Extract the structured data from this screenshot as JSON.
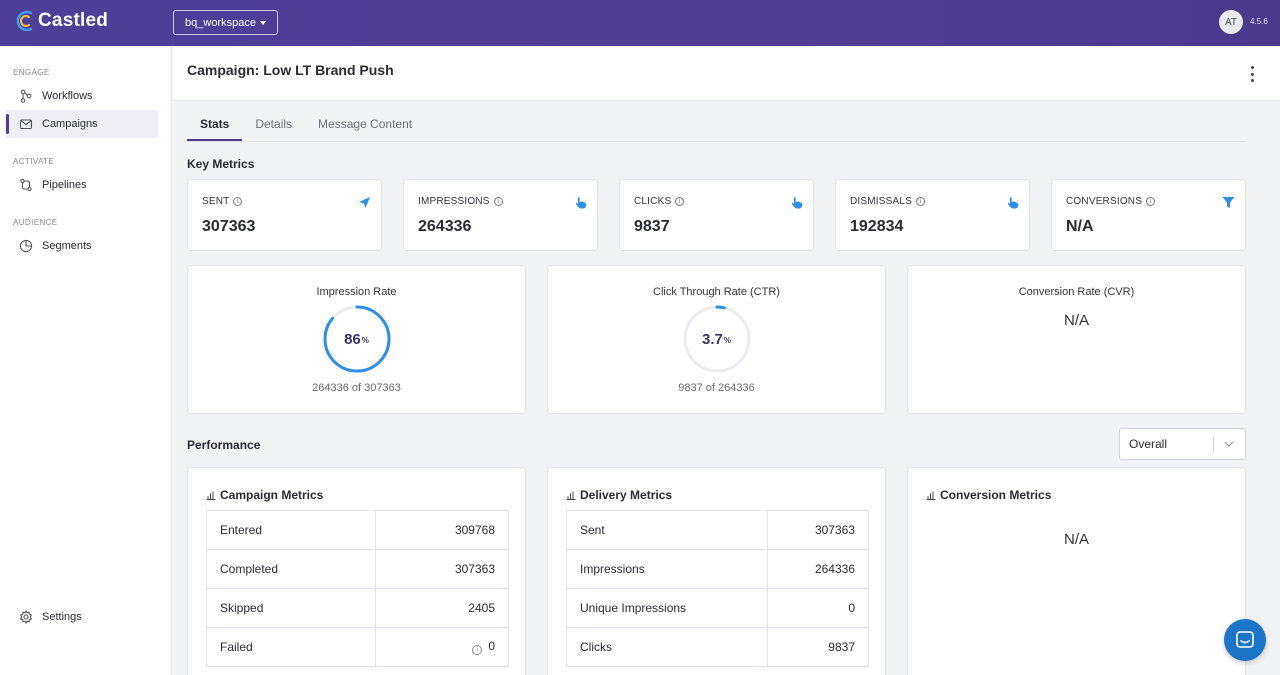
{
  "app": {
    "name": "Castled",
    "version": "4.5.6",
    "workspace": "bq_workspace",
    "user_initials": "AT"
  },
  "sidebar": {
    "sections": [
      {
        "label": "ENGAGE"
      },
      {
        "label": "ACTIVATE"
      },
      {
        "label": "AUDIENCE"
      }
    ],
    "items": [
      {
        "label": "Workflows",
        "icon": "workflow-icon"
      },
      {
        "label": "Campaigns",
        "icon": "envelope-icon",
        "active": true
      },
      {
        "label": "Pipelines",
        "icon": "pipeline-icon"
      },
      {
        "label": "Segments",
        "icon": "pie-chart-icon"
      },
      {
        "label": "Settings",
        "icon": "gear-icon"
      }
    ]
  },
  "page": {
    "title": "Campaign: Low LT Brand Push"
  },
  "tabs": [
    {
      "label": "Stats",
      "active": true
    },
    {
      "label": "Details"
    },
    {
      "label": "Message Content"
    }
  ],
  "key_metrics": {
    "title": "Key Metrics",
    "cards": [
      {
        "label": "SENT",
        "value": "307363",
        "icon": "send-icon"
      },
      {
        "label": "IMPRESSIONS",
        "value": "264336",
        "icon": "hand-pointer-icon"
      },
      {
        "label": "CLICKS",
        "value": "9837",
        "icon": "hand-pointer-icon"
      },
      {
        "label": "DISMISSALS",
        "value": "192834",
        "icon": "hand-pointer-icon"
      },
      {
        "label": "CONVERSIONS",
        "value": "N/A",
        "icon": "filter-icon"
      }
    ]
  },
  "rates": [
    {
      "title": "Impression Rate",
      "value": "86",
      "unit": "%",
      "fraction": 0.86,
      "sub": "264336 of 307363"
    },
    {
      "title": "Click Through Rate (CTR)",
      "value": "3.7",
      "unit": "%",
      "fraction": 0.037,
      "sub": "9837 of 264336"
    },
    {
      "title": "Conversion Rate (CVR)",
      "value": "N/A"
    }
  ],
  "performance": {
    "title": "Performance",
    "filter": "Overall",
    "campaign_metrics": {
      "title": "Campaign Metrics",
      "rows": [
        {
          "label": "Entered",
          "value": "309768"
        },
        {
          "label": "Completed",
          "value": "307363"
        },
        {
          "label": "Skipped",
          "value": "2405"
        },
        {
          "label": "Failed",
          "value": "0"
        }
      ]
    },
    "delivery_metrics": {
      "title": "Delivery Metrics",
      "rows": [
        {
          "label": "Sent",
          "value": "307363"
        },
        {
          "label": "Impressions",
          "value": "264336"
        },
        {
          "label": "Unique Impressions",
          "value": "0"
        },
        {
          "label": "Clicks",
          "value": "9837"
        }
      ]
    },
    "conversion_metrics": {
      "title": "Conversion Metrics",
      "value": "N/A"
    }
  },
  "colors": {
    "brand": "#4e3d92",
    "accent": "#2d8fe6",
    "chat": "#1c74c9"
  }
}
